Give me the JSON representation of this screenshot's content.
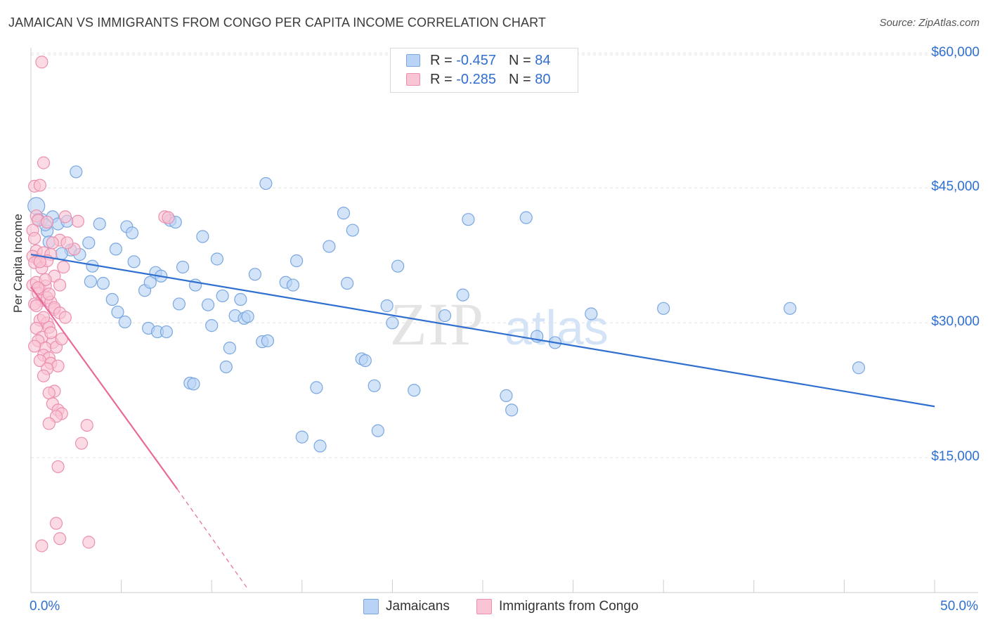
{
  "header": {
    "title": "JAMAICAN VS IMMIGRANTS FROM CONGO PER CAPITA INCOME CORRELATION CHART",
    "source": "Source: ZipAtlas.com"
  },
  "legend": {
    "rows": [
      {
        "r_label": "R =",
        "r_value": "-0.457",
        "n_label": "N =",
        "n_value": "84"
      },
      {
        "r_label": "R =",
        "r_value": "-0.285",
        "n_label": "N =",
        "n_value": "80"
      }
    ],
    "bottom": [
      "Jamaicans",
      "Immigrants from Congo"
    ]
  },
  "colors": {
    "blue_fill": "#b8d3f5",
    "blue_stroke": "#7aa7e0",
    "blue_line": "#2f6fd0",
    "pink_fill": "#f9c4d4",
    "pink_stroke": "#eb8fae",
    "pink_line": "#e8699a",
    "grid": "#e2e2e2",
    "tick_text": "#2f6fd0"
  },
  "chart_data": {
    "type": "scatter",
    "title": "JAMAICAN VS IMMIGRANTS FROM CONGO PER CAPITA INCOME CORRELATION CHART",
    "xlabel": "",
    "ylabel": "Per Capita Income",
    "xlim": [
      0,
      50
    ],
    "ylim": [
      0,
      62000
    ],
    "x_tick_labels": [
      "0.0%",
      "50.0%"
    ],
    "y_ticks": [
      15000,
      30000,
      45000,
      60000
    ],
    "y_tick_labels": [
      "$15,000",
      "$30,000",
      "$45,000",
      "$60,000"
    ],
    "grid": true,
    "legend_position": "top-center",
    "watermark": "ZIPatlas",
    "series": [
      {
        "name": "Jamaicans",
        "r": -0.457,
        "n": 84,
        "trend": {
          "x": [
            0,
            50
          ],
          "y": [
            37600,
            20700
          ]
        },
        "points": [
          [
            0.3,
            43000
          ],
          [
            0.6,
            41500
          ],
          [
            0.9,
            40200
          ],
          [
            1.2,
            41800
          ],
          [
            1.5,
            41000
          ],
          [
            1.0,
            39000
          ],
          [
            2.5,
            46800
          ],
          [
            2.0,
            41300
          ],
          [
            2.2,
            38100
          ],
          [
            3.2,
            38900
          ],
          [
            3.8,
            41000
          ],
          [
            4.7,
            38200
          ],
          [
            5.3,
            40700
          ],
          [
            5.6,
            40000
          ],
          [
            3.4,
            36300
          ],
          [
            2.7,
            37600
          ],
          [
            3.3,
            34600
          ],
          [
            4.0,
            34400
          ],
          [
            4.5,
            32600
          ],
          [
            4.8,
            31200
          ],
          [
            5.2,
            30100
          ],
          [
            5.7,
            36800
          ],
          [
            6.3,
            33600
          ],
          [
            6.6,
            34500
          ],
          [
            6.9,
            35600
          ],
          [
            7.2,
            35200
          ],
          [
            6.5,
            29400
          ],
          [
            7.0,
            29000
          ],
          [
            7.5,
            29000
          ],
          [
            7.7,
            41400
          ],
          [
            8.0,
            41200
          ],
          [
            8.2,
            32100
          ],
          [
            8.4,
            36200
          ],
          [
            8.8,
            23300
          ],
          [
            9.0,
            23200
          ],
          [
            9.1,
            34200
          ],
          [
            9.5,
            39600
          ],
          [
            9.8,
            32000
          ],
          [
            10.0,
            29700
          ],
          [
            10.3,
            37100
          ],
          [
            10.6,
            33000
          ],
          [
            11.0,
            27200
          ],
          [
            10.8,
            25100
          ],
          [
            11.3,
            30800
          ],
          [
            11.6,
            32600
          ],
          [
            11.8,
            30500
          ],
          [
            12.0,
            30700
          ],
          [
            12.4,
            35400
          ],
          [
            12.8,
            27900
          ],
          [
            13.1,
            28000
          ],
          [
            13.0,
            45500
          ],
          [
            14.1,
            34500
          ],
          [
            14.5,
            34200
          ],
          [
            14.7,
            36900
          ],
          [
            15.0,
            17300
          ],
          [
            15.8,
            22800
          ],
          [
            16.0,
            16300
          ],
          [
            16.5,
            38500
          ],
          [
            17.3,
            42200
          ],
          [
            17.5,
            34400
          ],
          [
            17.8,
            40300
          ],
          [
            18.3,
            26000
          ],
          [
            18.5,
            25800
          ],
          [
            19.0,
            23000
          ],
          [
            19.2,
            18000
          ],
          [
            19.7,
            31900
          ],
          [
            20.0,
            30000
          ],
          [
            20.3,
            36300
          ],
          [
            21.2,
            22500
          ],
          [
            22.9,
            30800
          ],
          [
            23.9,
            33100
          ],
          [
            24.2,
            41500
          ],
          [
            26.3,
            21900
          ],
          [
            26.6,
            20300
          ],
          [
            27.4,
            41700
          ],
          [
            28.0,
            28500
          ],
          [
            29.0,
            27800
          ],
          [
            31.0,
            31000
          ],
          [
            35.0,
            31600
          ],
          [
            42.0,
            31600
          ],
          [
            45.8,
            25000
          ],
          [
            0.4,
            41500
          ],
          [
            1.7,
            37700
          ],
          [
            0.8,
            40900
          ]
        ]
      },
      {
        "name": "Immigrants from Congo",
        "r": -0.285,
        "n": 80,
        "trend": {
          "x": [
            0,
            8.1
          ],
          "y": [
            34000,
            11500
          ]
        },
        "trend_dashed": {
          "x": [
            8.1,
            12
          ],
          "y": [
            11500,
            400
          ]
        },
        "points": [
          [
            0.6,
            59000
          ],
          [
            0.7,
            47800
          ],
          [
            0.2,
            45200
          ],
          [
            0.5,
            45300
          ],
          [
            0.3,
            41900
          ],
          [
            0.4,
            41400
          ],
          [
            0.1,
            40300
          ],
          [
            0.2,
            39400
          ],
          [
            0.3,
            38000
          ],
          [
            0.1,
            37400
          ],
          [
            0.4,
            37000
          ],
          [
            0.7,
            37800
          ],
          [
            0.2,
            36700
          ],
          [
            0.6,
            36100
          ],
          [
            0.1,
            34200
          ],
          [
            0.5,
            33800
          ],
          [
            0.3,
            34500
          ],
          [
            0.8,
            34100
          ],
          [
            0.4,
            33300
          ],
          [
            0.6,
            32500
          ],
          [
            0.9,
            32800
          ],
          [
            0.2,
            32100
          ],
          [
            1.1,
            32300
          ],
          [
            1.3,
            31500
          ],
          [
            0.5,
            30300
          ],
          [
            0.9,
            30000
          ],
          [
            0.3,
            29400
          ],
          [
            1.0,
            29500
          ],
          [
            0.6,
            28400
          ],
          [
            0.4,
            28000
          ],
          [
            1.2,
            27800
          ],
          [
            0.8,
            27200
          ],
          [
            0.2,
            27400
          ],
          [
            1.4,
            27300
          ],
          [
            0.7,
            26400
          ],
          [
            1.0,
            26100
          ],
          [
            0.5,
            25800
          ],
          [
            1.1,
            25500
          ],
          [
            1.5,
            25200
          ],
          [
            0.9,
            24900
          ],
          [
            0.7,
            24100
          ],
          [
            1.3,
            22400
          ],
          [
            1.0,
            22200
          ],
          [
            1.2,
            21000
          ],
          [
            1.5,
            20300
          ],
          [
            1.7,
            19900
          ],
          [
            1.4,
            19600
          ],
          [
            1.0,
            18800
          ],
          [
            3.1,
            18600
          ],
          [
            2.8,
            16600
          ],
          [
            1.5,
            14000
          ],
          [
            1.4,
            7700
          ],
          [
            1.6,
            6000
          ],
          [
            3.2,
            5600
          ],
          [
            0.6,
            5200
          ],
          [
            7.4,
            41800
          ],
          [
            7.6,
            41700
          ],
          [
            2.6,
            41300
          ],
          [
            1.9,
            41800
          ],
          [
            1.6,
            39200
          ],
          [
            1.2,
            38900
          ],
          [
            2.4,
            38200
          ],
          [
            1.1,
            37600
          ],
          [
            0.9,
            36900
          ],
          [
            1.8,
            36200
          ],
          [
            1.3,
            35200
          ],
          [
            0.8,
            34800
          ],
          [
            1.6,
            34200
          ],
          [
            0.4,
            33900
          ],
          [
            1.0,
            33200
          ],
          [
            1.3,
            31700
          ],
          [
            1.6,
            31100
          ],
          [
            1.9,
            30600
          ],
          [
            0.7,
            30600
          ],
          [
            1.1,
            28900
          ],
          [
            1.7,
            28200
          ],
          [
            0.3,
            31900
          ],
          [
            0.9,
            41200
          ],
          [
            2.0,
            38900
          ],
          [
            0.5,
            36800
          ]
        ]
      }
    ]
  }
}
